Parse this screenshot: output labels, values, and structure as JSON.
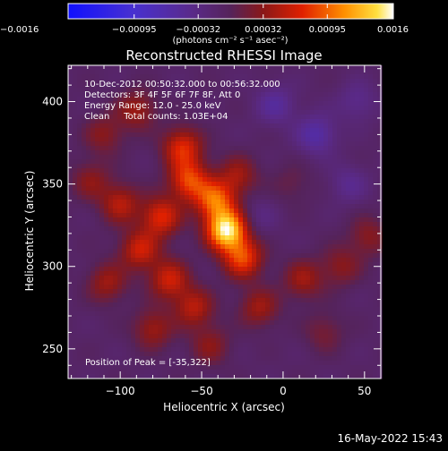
{
  "chart_data": {
    "type": "heatmap",
    "title": "Reconstructed RHESSI Image",
    "xlabel": "Heliocentric X (arcsec)",
    "ylabel": "Heliocentric Y (arcsec)",
    "xlim": [
      -132,
      60
    ],
    "ylim": [
      232,
      422
    ],
    "xticks": [
      -100,
      -50,
      0,
      50
    ],
    "xtick_labels": [
      "−100",
      "−50",
      "0",
      "50"
    ],
    "yticks": [
      250,
      300,
      350,
      400
    ],
    "ytick_labels": [
      "250",
      "300",
      "350",
      "400"
    ],
    "colorbar": {
      "range": [
        -0.0016,
        0.0016
      ],
      "ticks": [
        -0.0016,
        -0.00095,
        -0.00032,
        0.00032,
        0.00095,
        0.0016
      ],
      "tick_labels": [
        "−0.0016",
        "−0.00095",
        "−0.00032",
        "0.00032",
        "0.00095",
        "0.0016"
      ],
      "units": "(photons cm⁻² s⁻¹ asec⁻²)"
    },
    "peak": [
      -35,
      322
    ],
    "annotations": [
      "10-Dec-2012 00:50:32.000 to 00:56:32.000",
      "Detectors: 3F 4F 5F 6F 7F 8F, Att 0",
      "Energy Range: 12.0 - 25.0 keV",
      "Clean     Total counts: 1.03E+04"
    ],
    "peak_label": "Position of Peak = [-35,322]",
    "footer": "16-May-2022 15:43",
    "colormap": "rainbow (blue-purple-red-orange-yellow-white)",
    "sources": [
      {
        "x": -35,
        "y": 322,
        "amp": 0.0016
      },
      {
        "x": -42,
        "y": 340,
        "amp": 0.001
      },
      {
        "x": -58,
        "y": 352,
        "amp": 0.0009
      },
      {
        "x": -62,
        "y": 372,
        "amp": 0.0008
      },
      {
        "x": -75,
        "y": 330,
        "amp": 0.0008
      },
      {
        "x": -25,
        "y": 305,
        "amp": 0.0009
      },
      {
        "x": -88,
        "y": 310,
        "amp": 0.0007
      },
      {
        "x": -100,
        "y": 338,
        "amp": 0.0006
      },
      {
        "x": -70,
        "y": 292,
        "amp": 0.0007
      },
      {
        "x": -55,
        "y": 275,
        "amp": 0.0006
      },
      {
        "x": -80,
        "y": 262,
        "amp": 0.0005
      },
      {
        "x": -108,
        "y": 290,
        "amp": 0.0005
      },
      {
        "x": -90,
        "y": 395,
        "amp": 0.0005
      },
      {
        "x": -110,
        "y": 380,
        "amp": 0.0004
      },
      {
        "x": -15,
        "y": 275,
        "amp": 0.0005
      },
      {
        "x": 12,
        "y": 292,
        "amp": 0.0005
      },
      {
        "x": 35,
        "y": 300,
        "amp": 0.0004
      },
      {
        "x": 52,
        "y": 318,
        "amp": 0.0004
      },
      {
        "x": 25,
        "y": 260,
        "amp": 0.0003
      },
      {
        "x": -45,
        "y": 252,
        "amp": 0.0004
      },
      {
        "x": -118,
        "y": 352,
        "amp": 0.0004
      },
      {
        "x": -28,
        "y": 355,
        "amp": 0.0005
      },
      {
        "x": 5,
        "y": 350,
        "amp": 0.0002
      },
      {
        "x": -5,
        "y": 398,
        "amp": -0.0004
      },
      {
        "x": 20,
        "y": 380,
        "amp": -0.0005
      },
      {
        "x": 45,
        "y": 400,
        "amp": -0.0003
      },
      {
        "x": -15,
        "y": 330,
        "amp": -0.0002
      },
      {
        "x": 40,
        "y": 350,
        "amp": -0.0003
      }
    ]
  }
}
